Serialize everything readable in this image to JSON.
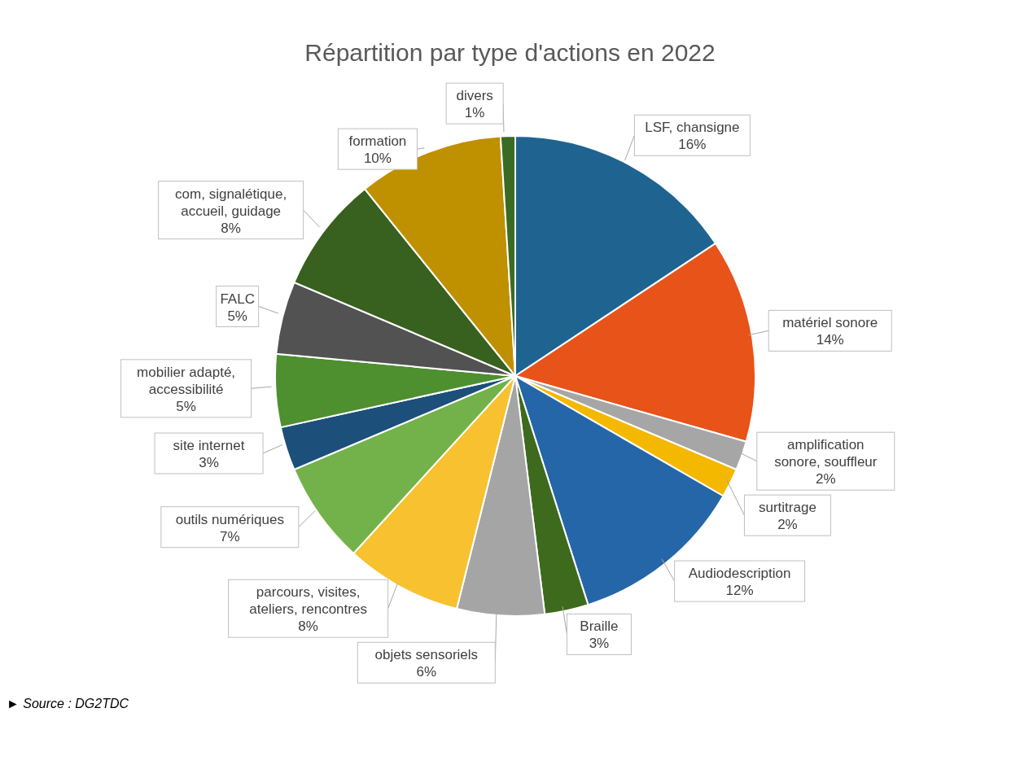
{
  "chart_data": {
    "type": "pie",
    "title": "Répartition par type d'actions en 2022",
    "categories": [
      "LSF, chansigne",
      "matériel sonore",
      "amplification sonore, souffleur",
      "surtitrage",
      "Audiodescription",
      "Braille",
      "objets sensoriels",
      "parcours, visites, ateliers, rencontres",
      "outils numériques",
      "site internet",
      "mobilier adapté, accessibilité",
      "FALC",
      "com, signalétique, accueil, guidage",
      "formation",
      "divers"
    ],
    "values": [
      16,
      14,
      2,
      2,
      12,
      3,
      6,
      8,
      7,
      3,
      5,
      5,
      8,
      10,
      1
    ],
    "value_labels": [
      "16%",
      "14%",
      "2%",
      "2%",
      "12%",
      "3%",
      "6%",
      "8%",
      "7%",
      "3%",
      "5%",
      "5%",
      "8%",
      "10%",
      "1%"
    ],
    "colors": [
      "#1f6391",
      "#e8531a",
      "#a6a6a6",
      "#f5b800",
      "#2566a8",
      "#3e6a1e",
      "#a5a5a5",
      "#f7c12f",
      "#73b24a",
      "#1c4f7a",
      "#4e8f2f",
      "#525252",
      "#38601e",
      "#bf9000",
      "#3a6b24"
    ],
    "annotations": [
      "► Source : DG2TDC"
    ]
  }
}
